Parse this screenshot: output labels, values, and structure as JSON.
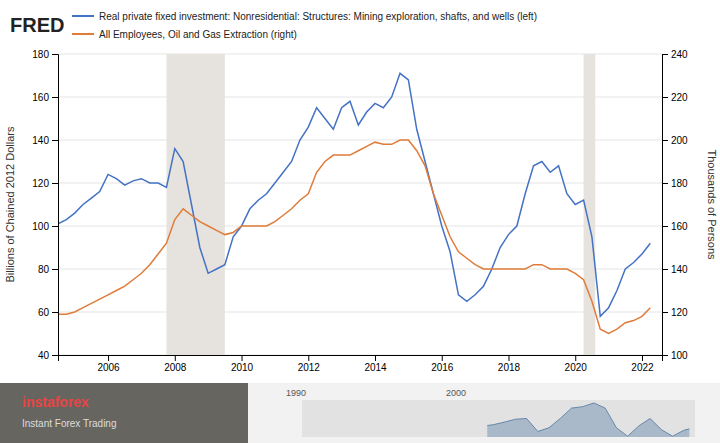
{
  "chart_data": [
    {
      "type": "line",
      "title": "FRED",
      "annotations": [
        "instaforex",
        "Instant Forex Trading"
      ],
      "x": [
        2004.5,
        2004.75,
        2005.0,
        2005.25,
        2005.5,
        2005.75,
        2006.0,
        2006.25,
        2006.5,
        2006.75,
        2007.0,
        2007.25,
        2007.5,
        2007.75,
        2008.0,
        2008.25,
        2008.5,
        2008.75,
        2009.0,
        2009.25,
        2009.5,
        2009.75,
        2010.0,
        2010.25,
        2010.5,
        2010.75,
        2011.0,
        2011.25,
        2011.5,
        2011.75,
        2012.0,
        2012.25,
        2012.5,
        2012.75,
        2013.0,
        2013.25,
        2013.5,
        2013.75,
        2014.0,
        2014.25,
        2014.5,
        2014.75,
        2015.0,
        2015.25,
        2015.5,
        2015.75,
        2016.0,
        2016.25,
        2016.5,
        2016.75,
        2017.0,
        2017.25,
        2017.5,
        2017.75,
        2018.0,
        2018.25,
        2018.5,
        2018.75,
        2019.0,
        2019.25,
        2019.5,
        2019.75,
        2020.0,
        2020.25,
        2020.5,
        2020.75,
        2021.0,
        2021.25,
        2021.5,
        2021.75,
        2022.0,
        2022.25
      ],
      "series": [
        {
          "name": "Real private fixed investment: Nonresidential: Structures: Mining exploration, shafts, and wells (left)",
          "color": "#4472c4",
          "values": [
            101,
            103,
            106,
            110,
            113,
            116,
            124,
            122,
            119,
            121,
            122,
            120,
            120,
            118,
            136,
            130,
            110,
            90,
            78,
            80,
            82,
            95,
            100,
            108,
            112,
            115,
            120,
            125,
            130,
            140,
            146,
            155,
            150,
            145,
            155,
            158,
            147,
            153,
            157,
            155,
            160,
            171,
            168,
            145,
            130,
            115,
            100,
            88,
            68,
            65,
            68,
            72,
            80,
            90,
            96,
            100,
            115,
            128,
            130,
            125,
            128,
            115,
            110,
            112,
            95,
            58,
            62,
            70,
            80,
            83,
            87,
            92
          ]
        },
        {
          "name": "All Employees, Oil and Gas Extraction (right)",
          "color": "#e07b39",
          "axis": "y2",
          "values": [
            119,
            119,
            120,
            122,
            124,
            126,
            128,
            130,
            132,
            135,
            138,
            142,
            147,
            152,
            163,
            168,
            165,
            162,
            160,
            158,
            156,
            157,
            160,
            160,
            160,
            160,
            162,
            165,
            168,
            172,
            175,
            185,
            190,
            193,
            193,
            193,
            195,
            197,
            199,
            198,
            198,
            200,
            200,
            195,
            188,
            175,
            165,
            155,
            148,
            145,
            142,
            140,
            140,
            140,
            140,
            140,
            140,
            142,
            142,
            140,
            140,
            140,
            138,
            135,
            125,
            112,
            110,
            112,
            115,
            116,
            118,
            122
          ]
        }
      ],
      "shaded_ranges": [
        [
          2007.75,
          2009.5
        ],
        [
          2020.25,
          2020.6
        ]
      ],
      "xlim": [
        2004.5,
        2022.6
      ],
      "xticks": [
        2006,
        2008,
        2010,
        2012,
        2014,
        2016,
        2018,
        2020,
        2022
      ],
      "ylim": [
        40,
        180
      ],
      "yticks": [
        40,
        60,
        80,
        100,
        120,
        140,
        160,
        180
      ],
      "y2lim": [
        100,
        240
      ],
      "y2ticks": [
        100,
        120,
        140,
        160,
        180,
        200,
        220,
        240
      ],
      "ylabel": "Billions of Chained 2012 Dollars",
      "y2label": "Thousands of Persons",
      "grid": true,
      "legend": "upper left"
    },
    {
      "type": "area",
      "annotations": [
        "1990",
        "2000"
      ],
      "x": [
        2004.5,
        2005.0,
        2006.0,
        2007.0,
        2008.0,
        2009.0,
        2010.0,
        2011.0,
        2012.0,
        2013.0,
        2014.0,
        2015.0,
        2016.0,
        2017.0,
        2018.0,
        2019.0,
        2020.0,
        2021.0,
        2022.0,
        2022.5
      ],
      "values": [
        101,
        103,
        110,
        118,
        120,
        85,
        95,
        120,
        148,
        152,
        162,
        148,
        95,
        72,
        100,
        120,
        90,
        72,
        88,
        92
      ],
      "color": "#6688aa",
      "xlim": [
        1988,
        2023
      ],
      "ylim": [
        70,
        170
      ],
      "tick_labels": false
    }
  ]
}
